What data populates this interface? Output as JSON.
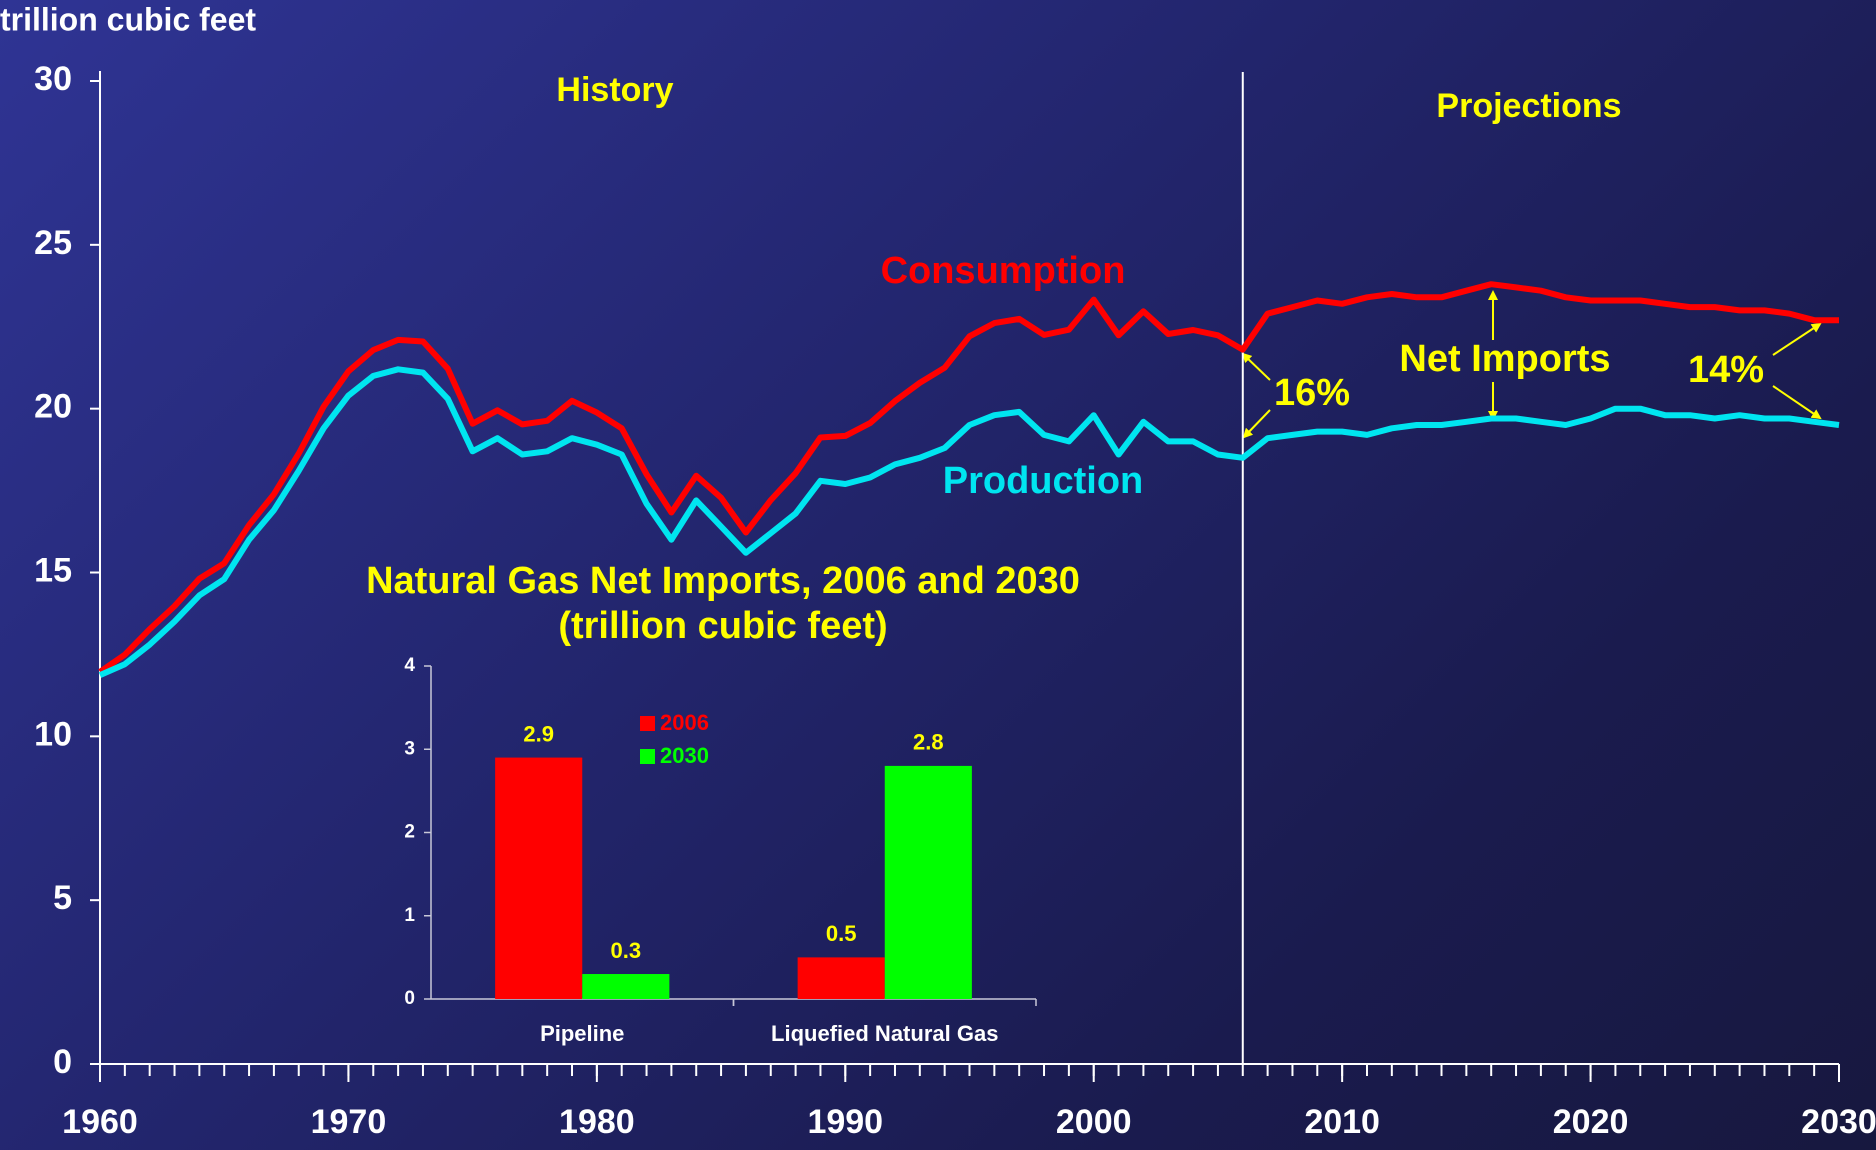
{
  "chart_data": [
    {
      "type": "line",
      "y_label": "trillion cubic feet",
      "x": [
        1960,
        1961,
        1962,
        1963,
        1964,
        1965,
        1966,
        1967,
        1968,
        1969,
        1970,
        1971,
        1972,
        1973,
        1974,
        1975,
        1976,
        1977,
        1978,
        1979,
        1980,
        1981,
        1982,
        1983,
        1984,
        1985,
        1986,
        1987,
        1988,
        1989,
        1990,
        1991,
        1992,
        1993,
        1994,
        1995,
        1996,
        1997,
        1998,
        1999,
        2000,
        2001,
        2002,
        2003,
        2004,
        2005,
        2006,
        2007,
        2008,
        2009,
        2010,
        2011,
        2012,
        2013,
        2014,
        2015,
        2016,
        2017,
        2018,
        2019,
        2020,
        2021,
        2022,
        2023,
        2024,
        2025,
        2026,
        2027,
        2028,
        2029,
        2030
      ],
      "series": [
        {
          "name": "Consumption",
          "color": "#ff0000",
          "values": [
            11.97,
            12.49,
            13.27,
            13.97,
            14.81,
            15.28,
            16.45,
            17.39,
            18.63,
            20.06,
            21.14,
            21.79,
            22.1,
            22.05,
            21.22,
            19.54,
            19.95,
            19.52,
            19.63,
            20.24,
            19.88,
            19.4,
            18.0,
            16.83,
            17.95,
            17.28,
            16.22,
            17.21,
            18.03,
            19.12,
            19.17,
            19.56,
            20.23,
            20.79,
            21.25,
            22.21,
            22.61,
            22.74,
            22.25,
            22.41,
            23.33,
            22.24,
            22.97,
            22.28,
            22.4,
            22.24,
            21.8,
            22.9,
            23.1,
            23.3,
            23.2,
            23.4,
            23.5,
            23.4,
            23.4,
            23.6,
            23.8,
            23.7,
            23.6,
            23.4,
            23.3,
            23.3,
            23.3,
            23.2,
            23.1,
            23.1,
            23.0,
            23.0,
            22.9,
            22.7,
            22.7
          ]
        },
        {
          "name": "Production",
          "color": "#00e5f0",
          "values": [
            11.87,
            12.2,
            12.8,
            13.5,
            14.3,
            14.8,
            16.0,
            16.9,
            18.1,
            19.4,
            20.4,
            21.0,
            21.2,
            21.1,
            20.3,
            18.7,
            19.1,
            18.6,
            18.7,
            19.1,
            18.9,
            18.6,
            17.1,
            16.0,
            17.2,
            16.4,
            15.6,
            16.2,
            16.8,
            17.8,
            17.7,
            17.9,
            18.3,
            18.5,
            18.8,
            19.5,
            19.8,
            19.9,
            19.2,
            19.0,
            19.8,
            18.6,
            19.6,
            19.0,
            19.0,
            18.6,
            18.5,
            19.1,
            19.2,
            19.3,
            19.3,
            19.2,
            19.4,
            19.5,
            19.5,
            19.6,
            19.7,
            19.7,
            19.6,
            19.5,
            19.7,
            20.0,
            20.0,
            19.8,
            19.8,
            19.7,
            19.8,
            19.7,
            19.7,
            19.6,
            19.5
          ]
        }
      ],
      "xlim": [
        1960,
        2030
      ],
      "xticks": [
        1960,
        1970,
        1980,
        1990,
        2000,
        2010,
        2020,
        2030
      ],
      "ylim": [
        0,
        30
      ],
      "yticks": [
        0,
        5,
        10,
        15,
        20,
        25,
        30
      ],
      "divider": 2006,
      "annotations": [
        "History",
        "Projections",
        "Net Imports",
        "16%",
        "14%"
      ]
    },
    {
      "type": "bar",
      "title": "Natural Gas Net Imports, 2006 and 2030",
      "subtitle": "(trillion cubic feet)",
      "categories": [
        "Pipeline",
        "Liquefied Natural Gas"
      ],
      "series": [
        {
          "name": "2006",
          "color": "#ff0000",
          "values": [
            2.9,
            0.5
          ]
        },
        {
          "name": "2030",
          "color": "#00ff00",
          "values": [
            0.3,
            2.8
          ]
        }
      ],
      "ylim": [
        0,
        4
      ],
      "yticks": [
        0,
        1,
        2,
        3,
        4
      ]
    }
  ]
}
